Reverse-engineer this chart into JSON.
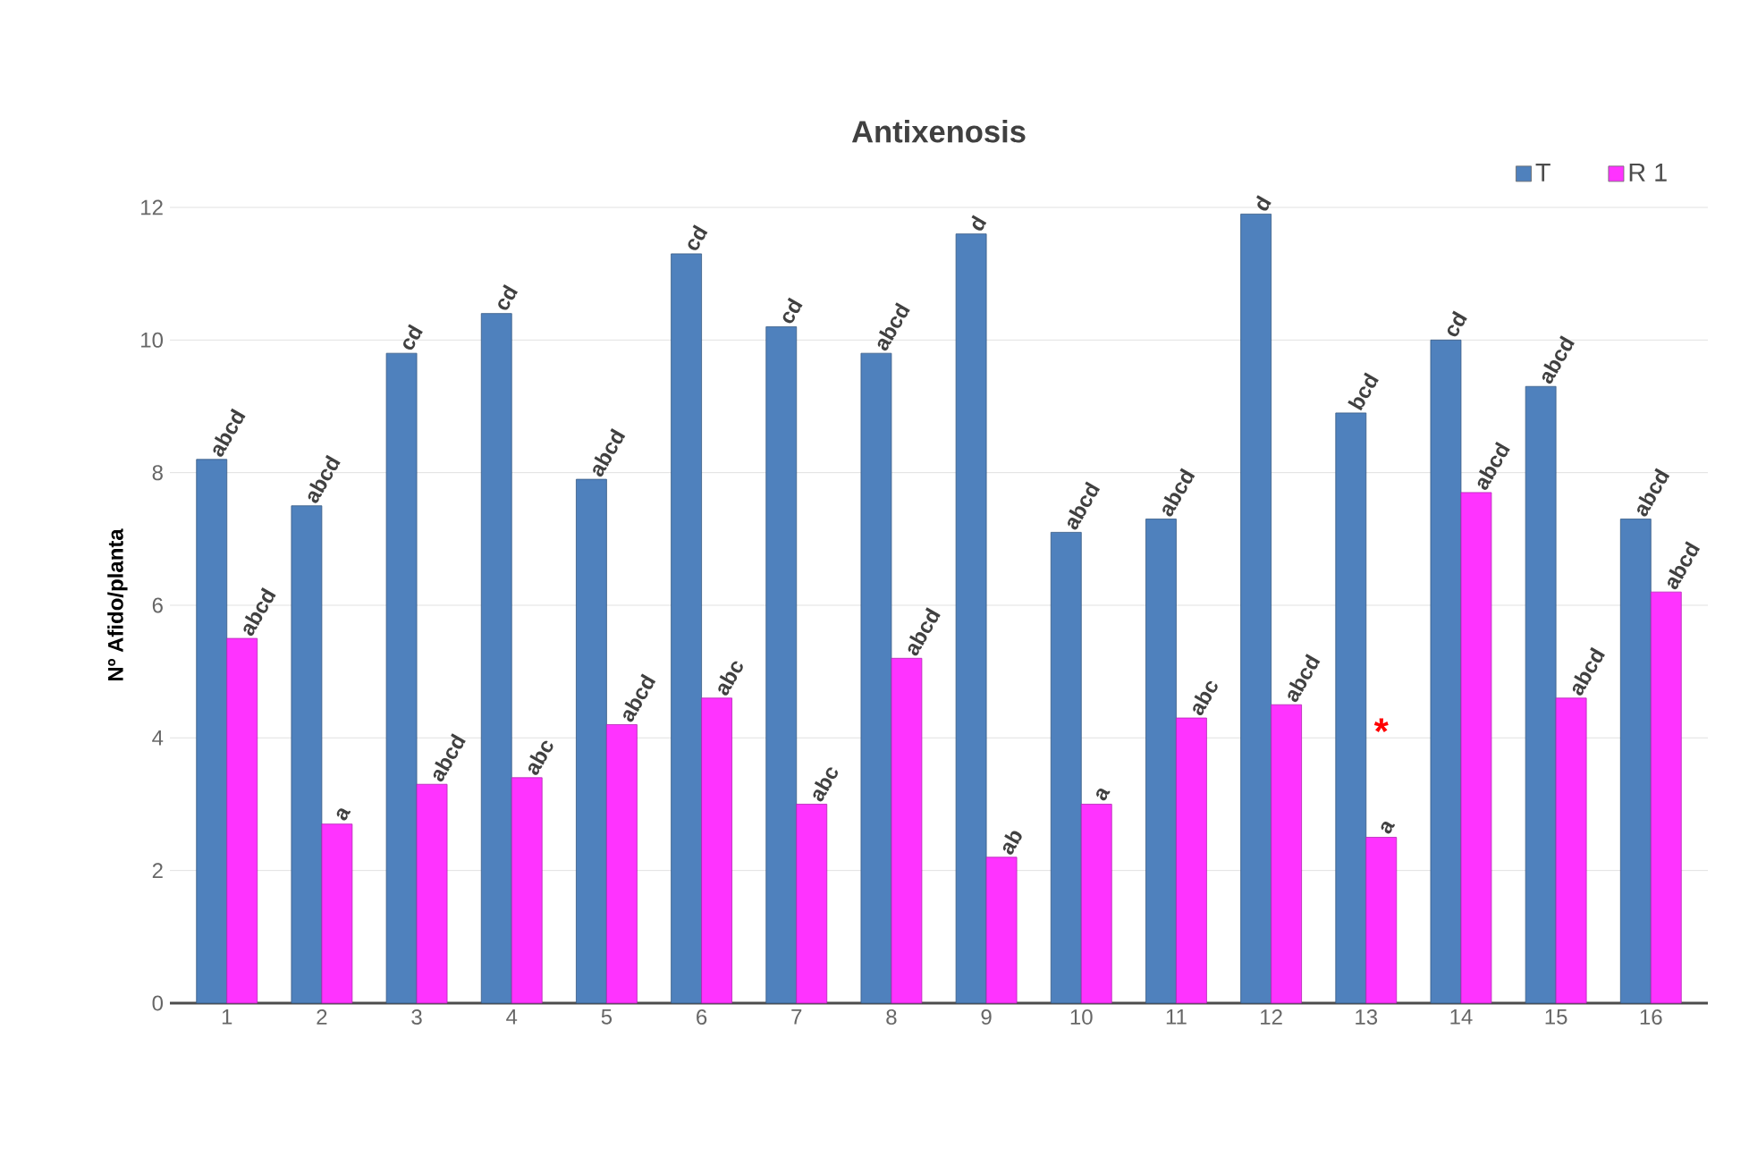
{
  "chart_data": {
    "type": "bar",
    "title": "Antixenosis",
    "ylabel": "Nº Afido/planta",
    "categories": [
      "1",
      "2",
      "3",
      "4",
      "5",
      "6",
      "7",
      "8",
      "9",
      "10",
      "11",
      "12",
      "13",
      "14",
      "15",
      "16"
    ],
    "series": [
      {
        "name": "T",
        "color": "#4f81bd",
        "values": [
          8.2,
          7.5,
          9.8,
          10.4,
          7.9,
          11.3,
          10.2,
          9.8,
          11.6,
          7.1,
          7.3,
          11.9,
          8.9,
          10.0,
          9.3,
          7.3
        ],
        "value_labels": [
          "abcd",
          "abcd",
          "cd",
          "cd",
          "abcd",
          "cd",
          "cd",
          "abcd",
          "d",
          "abcd",
          "abcd",
          "d",
          "bcd",
          "cd",
          "abcd",
          "abcd"
        ]
      },
      {
        "name": "R 1",
        "color": "#ff33ff",
        "values": [
          5.5,
          2.7,
          3.3,
          3.4,
          4.2,
          4.6,
          3.0,
          5.2,
          2.2,
          3.0,
          4.3,
          4.5,
          2.5,
          7.7,
          4.6,
          6.2
        ],
        "value_labels": [
          "abcd",
          "a",
          "abcd",
          "abc",
          "abcd",
          "abc",
          "abc",
          "abcd",
          "ab",
          "a",
          "abc",
          "abcd",
          "a",
          "abcd",
          "abcd",
          "abcd"
        ]
      }
    ],
    "annotations": [
      {
        "text": "*",
        "x": "13",
        "y": 4.1
      }
    ],
    "ylim": [
      0,
      12
    ],
    "yticks": [
      0,
      2,
      4,
      6,
      8,
      10,
      12
    ],
    "grid": "y",
    "legend": "top right"
  }
}
